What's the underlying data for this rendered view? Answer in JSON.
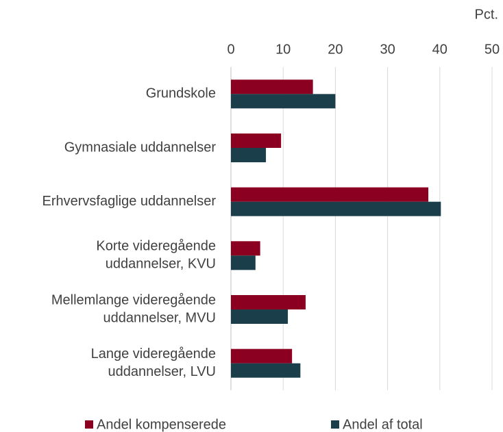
{
  "chart_data": {
    "type": "bar",
    "orientation": "horizontal",
    "unit_label": "Pct.",
    "categories": [
      [
        "Grundskole"
      ],
      [
        "Gymnasiale uddannelser"
      ],
      [
        "Erhvervsfaglige uddannelser"
      ],
      [
        "Korte videregående",
        "uddannelser, KVU"
      ],
      [
        "Mellemlange videregående",
        "uddannelser, MVU"
      ],
      [
        "Lange videregående",
        "uddannelser, LVU"
      ]
    ],
    "series": [
      {
        "name": "Andel kompenserede",
        "color": "#8b0020",
        "values": [
          15.7,
          9.6,
          37.8,
          5.6,
          14.3,
          11.7
        ]
      },
      {
        "name": "Andel af total",
        "color": "#1b3f4a",
        "values": [
          20.0,
          6.7,
          40.2,
          4.7,
          10.9,
          13.3
        ]
      }
    ],
    "xlim": [
      0,
      50
    ],
    "xticks": [
      0,
      10,
      20,
      30,
      40,
      50
    ],
    "grid": true
  }
}
